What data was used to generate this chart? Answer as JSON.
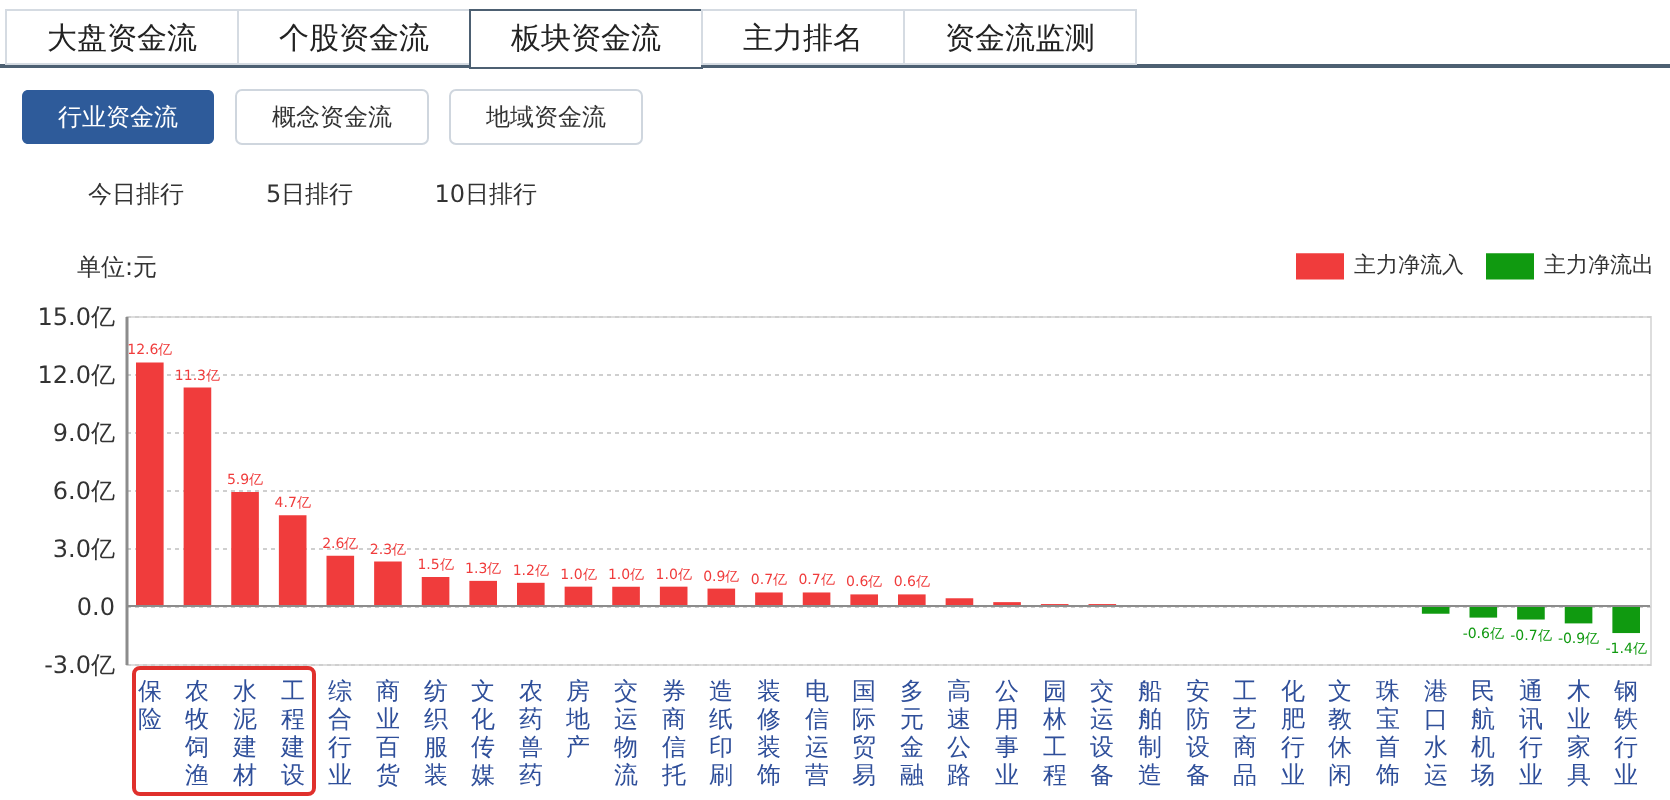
{
  "chart_data": {
    "type": "bar",
    "annotations": [
      "大盘资金流",
      "个股资金流",
      "板块资金流",
      "主力排名",
      "资金流监测",
      "行业资金流",
      "概念资金流",
      "地域资金流",
      "今日排行",
      "5日排行",
      "10日排行"
    ],
    "ylabel": "单位:元",
    "categories": [
      "保险",
      "农牧饲渔",
      "水泥建材",
      "工程建设",
      "综合行业",
      "商业百货",
      "纺织服装",
      "文化传媒",
      "农药兽药",
      "房地产",
      "交运物流",
      "券商信托",
      "造纸印刷",
      "装修装饰",
      "电信运营",
      "国际贸易",
      "多元金融",
      "高速公路",
      "公用事业",
      "园林工程",
      "交运设备",
      "船舶制造",
      "安防设备",
      "工艺商品",
      "化肥行业",
      "文教休闲",
      "珠宝首饰",
      "港口水运",
      "民航机场",
      "通讯行业",
      "木业家具",
      "钢铁行业"
    ],
    "series": [
      {
        "name": "主力净流入",
        "color": "#f03c3c",
        "values": [
          12.6,
          11.3,
          5.9,
          4.7,
          2.6,
          2.3,
          1.5,
          1.3,
          1.2,
          1.0,
          1.0,
          1.0,
          0.9,
          0.7,
          0.7,
          0.6,
          0.6,
          0.4,
          0.2,
          0.1,
          0.1,
          null,
          null,
          null,
          null,
          null,
          null,
          null,
          null,
          null,
          null,
          null
        ],
        "value_labels": [
          "12.6亿",
          "11.3亿",
          "5.9亿",
          "4.7亿",
          "2.6亿",
          "2.3亿",
          "1.5亿",
          "1.3亿",
          "1.2亿",
          "1.0亿",
          "1.0亿",
          "1.0亿",
          "0.9亿",
          "0.7亿",
          "0.7亿",
          "0.6亿",
          "0.6亿",
          null,
          null,
          null,
          null,
          null,
          null,
          null,
          null,
          null,
          null,
          null,
          null,
          null,
          null,
          null
        ]
      },
      {
        "name": "主力净流出",
        "color": "#109a10",
        "values": [
          null,
          null,
          null,
          null,
          null,
          null,
          null,
          null,
          null,
          null,
          null,
          null,
          null,
          null,
          null,
          null,
          null,
          null,
          null,
          null,
          null,
          null,
          null,
          null,
          null,
          null,
          null,
          -0.4,
          -0.6,
          -0.7,
          -0.9,
          -1.4
        ],
        "value_labels": [
          null,
          null,
          null,
          null,
          null,
          null,
          null,
          null,
          null,
          null,
          null,
          null,
          null,
          null,
          null,
          null,
          null,
          null,
          null,
          null,
          null,
          null,
          null,
          null,
          null,
          null,
          null,
          null,
          "-0.6亿",
          "-0.7亿",
          "-0.9亿",
          "-1.4亿"
        ]
      }
    ],
    "stacked": true,
    "ylim": [
      -3,
      15
    ],
    "yticks": [
      {
        "value": 15,
        "label": "15.0亿"
      },
      {
        "value": 12,
        "label": "12.0亿"
      },
      {
        "value": 9,
        "label": "9.0亿"
      },
      {
        "value": 6,
        "label": "6.0亿"
      },
      {
        "value": 3,
        "label": "3.0亿"
      },
      {
        "value": 0,
        "label": "0.0"
      },
      {
        "value": -3,
        "label": "-3.0亿"
      }
    ],
    "grid": "y",
    "legend": "top right"
  }
}
